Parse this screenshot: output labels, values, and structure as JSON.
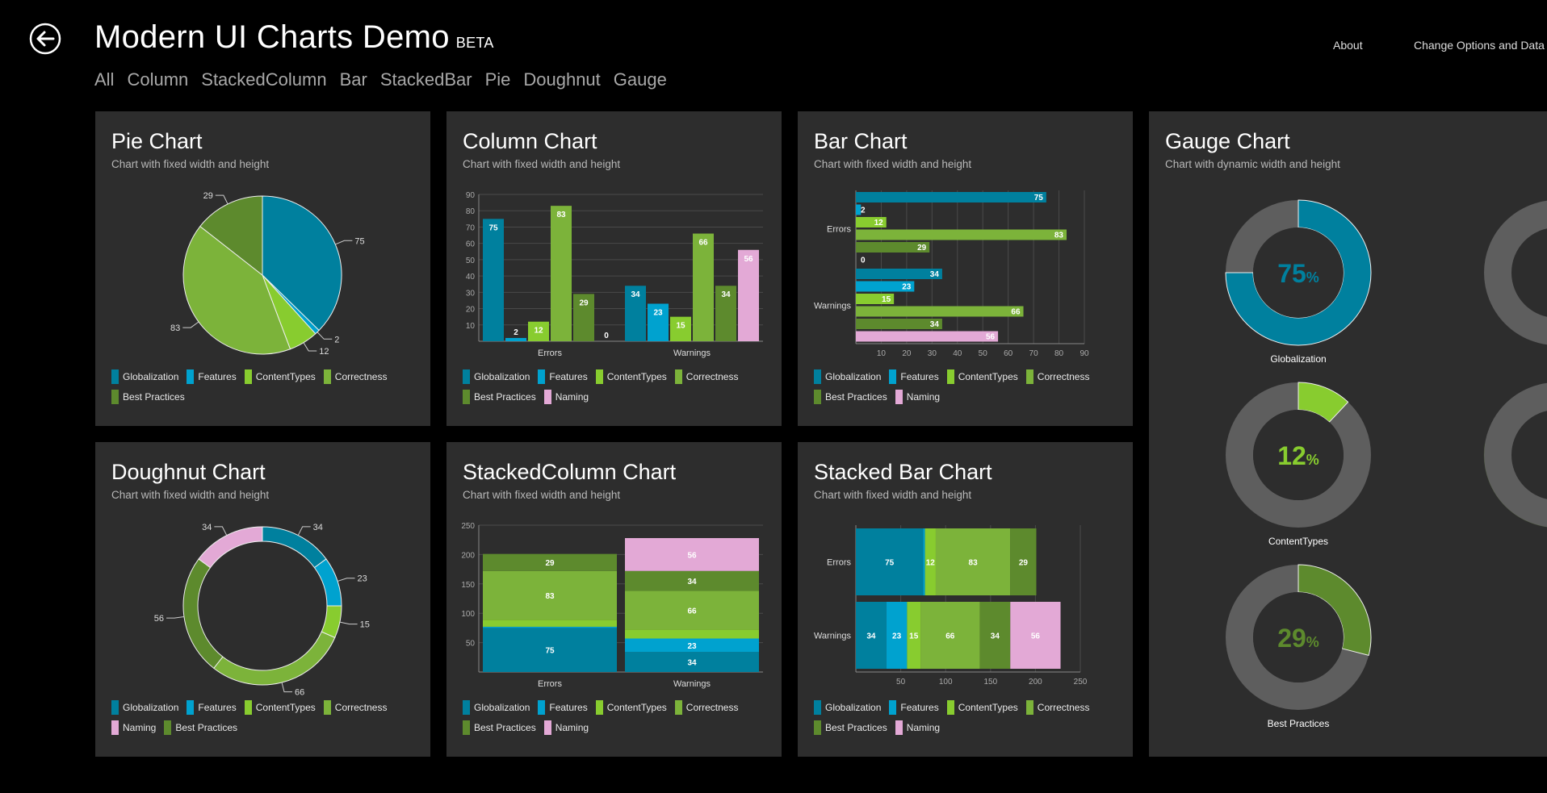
{
  "header": {
    "title": "Modern UI Charts Demo",
    "badge": "BETA",
    "about": "About",
    "options": "Change Options and Data"
  },
  "nav": [
    "All",
    "Column",
    "StackedColumn",
    "Bar",
    "StackedBar",
    "Pie",
    "Doughnut",
    "Gauge"
  ],
  "colors": {
    "Globalization": "#00809e",
    "Features": "#00a2cf",
    "ContentTypes": "#88cc2f",
    "Correctness": "#7cb33a",
    "Best Practices": "#5d8a2d",
    "Naming": "#e3a9d6",
    "axis": "#888888",
    "grid": "#4a4a4a",
    "panel": "#2d2d2d",
    "gauge_track": "#5e5e5e"
  },
  "panels": {
    "pie": {
      "title": "Pie Chart",
      "subtitle": "Chart with fixed width and height",
      "legend": [
        "Globalization",
        "Features",
        "ContentTypes",
        "Correctness",
        "Best Practices"
      ],
      "chart_data": {
        "type": "pie",
        "title": "Pie Chart",
        "slices": [
          {
            "name": "Globalization",
            "value": 75
          },
          {
            "name": "Features",
            "value": 2
          },
          {
            "name": "ContentTypes",
            "value": 12
          },
          {
            "name": "Correctness",
            "value": 83
          },
          {
            "name": "Best Practices",
            "value": 29
          }
        ]
      }
    },
    "column": {
      "title": "Column Chart",
      "subtitle": "Chart with fixed width and height",
      "legend": [
        "Globalization",
        "Features",
        "ContentTypes",
        "Correctness",
        "Best Practices",
        "Naming"
      ],
      "chart_data": {
        "type": "bar",
        "title": "Column Chart",
        "categories": [
          "Errors",
          "Warnings"
        ],
        "series": [
          {
            "name": "Globalization",
            "values": [
              75,
              34
            ]
          },
          {
            "name": "Features",
            "values": [
              2,
              23
            ]
          },
          {
            "name": "ContentTypes",
            "values": [
              12,
              15
            ]
          },
          {
            "name": "Correctness",
            "values": [
              83,
              66
            ]
          },
          {
            "name": "Best Practices",
            "values": [
              29,
              34
            ]
          },
          {
            "name": "Naming",
            "values": [
              0,
              56
            ]
          }
        ],
        "ylim": [
          0,
          90
        ],
        "yticks": [
          10,
          20,
          30,
          40,
          50,
          60,
          70,
          80,
          90
        ]
      }
    },
    "bar": {
      "title": "Bar Chart",
      "subtitle": "Chart with fixed width and height",
      "legend": [
        "Globalization",
        "Features",
        "ContentTypes",
        "Correctness",
        "Best Practices",
        "Naming"
      ],
      "chart_data": {
        "type": "bar",
        "orientation": "horizontal",
        "title": "Bar Chart",
        "categories": [
          "Errors",
          "Warnings"
        ],
        "series": [
          {
            "name": "Globalization",
            "values": [
              75,
              34
            ]
          },
          {
            "name": "Features",
            "values": [
              2,
              23
            ]
          },
          {
            "name": "ContentTypes",
            "values": [
              12,
              15
            ]
          },
          {
            "name": "Correctness",
            "values": [
              83,
              66
            ]
          },
          {
            "name": "Best Practices",
            "values": [
              29,
              34
            ]
          },
          {
            "name": "Naming",
            "values": [
              0,
              56
            ]
          }
        ],
        "xlim": [
          0,
          90
        ],
        "xticks": [
          10,
          20,
          30,
          40,
          50,
          60,
          70,
          80,
          90
        ]
      }
    },
    "doughnut": {
      "title": "Doughnut Chart",
      "subtitle": "Chart with fixed width and height",
      "legend": [
        "Globalization",
        "Features",
        "ContentTypes",
        "Correctness",
        "Naming",
        "Best Practices"
      ],
      "chart_data": {
        "type": "pie",
        "variant": "doughnut",
        "title": "Doughnut Chart",
        "slices": [
          {
            "name": "Globalization",
            "value": 34
          },
          {
            "name": "Features",
            "value": 23
          },
          {
            "name": "ContentTypes",
            "value": 15
          },
          {
            "name": "Correctness",
            "value": 66
          },
          {
            "name": "Best Practices",
            "value": 56
          },
          {
            "name": "Naming",
            "value": 34
          }
        ]
      }
    },
    "stackedColumn": {
      "title": "StackedColumn Chart",
      "subtitle": "Chart with fixed width and height",
      "legend": [
        "Globalization",
        "Features",
        "ContentTypes",
        "Correctness",
        "Best Practices",
        "Naming"
      ],
      "chart_data": {
        "type": "bar",
        "stacked": true,
        "title": "StackedColumn Chart",
        "categories": [
          "Errors",
          "Warnings"
        ],
        "series": [
          {
            "name": "Globalization",
            "values": [
              75,
              34
            ]
          },
          {
            "name": "Features",
            "values": [
              2,
              23
            ]
          },
          {
            "name": "ContentTypes",
            "values": [
              12,
              15
            ]
          },
          {
            "name": "Correctness",
            "values": [
              83,
              66
            ]
          },
          {
            "name": "Best Practices",
            "values": [
              29,
              34
            ]
          },
          {
            "name": "Naming",
            "values": [
              0,
              56
            ]
          }
        ],
        "ylim": [
          0,
          250
        ],
        "yticks": [
          50,
          100,
          150,
          200,
          250
        ]
      }
    },
    "stackedBar": {
      "title": "Stacked Bar Chart",
      "subtitle": "Chart with fixed width and height",
      "legend": [
        "Globalization",
        "Features",
        "ContentTypes",
        "Correctness",
        "Best Practices",
        "Naming"
      ],
      "chart_data": {
        "type": "bar",
        "orientation": "horizontal",
        "stacked": true,
        "title": "Stacked Bar Chart",
        "categories": [
          "Errors",
          "Warnings"
        ],
        "series": [
          {
            "name": "Globalization",
            "values": [
              75,
              34
            ]
          },
          {
            "name": "Features",
            "values": [
              2,
              23
            ]
          },
          {
            "name": "ContentTypes",
            "values": [
              12,
              15
            ]
          },
          {
            "name": "Correctness",
            "values": [
              83,
              66
            ]
          },
          {
            "name": "Best Practices",
            "values": [
              29,
              34
            ]
          },
          {
            "name": "Naming",
            "values": [
              0,
              56
            ]
          }
        ],
        "xlim": [
          0,
          250
        ],
        "xticks": [
          50,
          100,
          150,
          200,
          250
        ]
      }
    },
    "gauge": {
      "title": "Gauge Chart",
      "subtitle": "Chart with dynamic width and height",
      "chart_data": {
        "type": "gauge",
        "title": "Gauge Chart",
        "gauges": [
          {
            "name": "Globalization",
            "value": 75,
            "color": "#00809e"
          },
          {
            "name": "ContentTypes",
            "value": 12,
            "color": "#88cc2f"
          },
          {
            "name": "Best Practices",
            "value": 29,
            "color": "#5d8a2d"
          }
        ]
      }
    }
  }
}
